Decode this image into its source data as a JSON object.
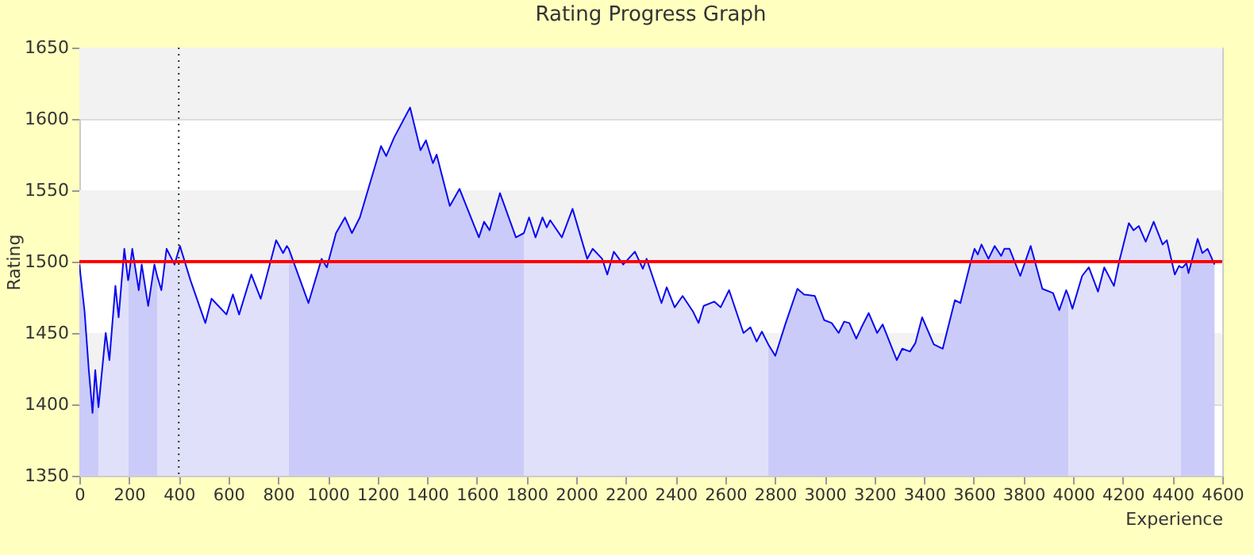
{
  "chart_data": {
    "type": "line",
    "title": "Rating Progress Graph",
    "xlabel": "Experience",
    "ylabel": "Rating",
    "xlim": [
      0,
      4600
    ],
    "xticks": [
      0,
      200,
      400,
      600,
      800,
      1000,
      1200,
      1400,
      1600,
      1800,
      2000,
      2200,
      2400,
      2600,
      2800,
      3000,
      3200,
      3400,
      3600,
      3800,
      4000,
      4200,
      4400,
      4600
    ],
    "ylim": [
      1350,
      1650
    ],
    "yticks": [
      1350,
      1400,
      1450,
      1500,
      1550,
      1600,
      1650
    ],
    "grid": "y",
    "ref_lines": [
      {
        "axis": "y",
        "value": 1500,
        "color": "#ff0000",
        "line_style": "solid"
      },
      {
        "axis": "x",
        "value": 400,
        "color": "#1a3a1a",
        "line_style": "dotted"
      }
    ],
    "series": [
      {
        "type": "area",
        "color": "#cbcbf9",
        "x": [
          0,
          21,
          38,
          53,
          64,
          77
        ],
        "values": [
          1498,
          1465,
          1424,
          1394,
          1424,
          1398
        ]
      },
      {
        "type": "area",
        "color": "#e0e0fb",
        "x": [
          77,
          106,
          121,
          145,
          158,
          181,
          196,
          198
        ],
        "values": [
          1398,
          1450,
          1431,
          1483,
          1461,
          1509,
          1487,
          1488
        ]
      },
      {
        "type": "area",
        "color": "#cbcbf9",
        "x": [
          198,
          213,
          239,
          251,
          277,
          302,
          313
        ],
        "values": [
          1488,
          1509,
          1480,
          1498,
          1469,
          1498,
          1490
        ]
      },
      {
        "type": "area",
        "color": "#e0e0fb",
        "x": [
          313,
          330,
          351,
          383,
          405,
          447,
          507,
          532,
          554,
          592,
          618,
          643,
          692,
          730,
          792,
          820,
          835,
          843
        ],
        "values": [
          1490,
          1480,
          1509,
          1498,
          1511,
          1487,
          1457,
          1474,
          1470,
          1463,
          1477,
          1463,
          1491,
          1474,
          1515,
          1506,
          1511,
          1509
        ]
      },
      {
        "type": "area",
        "color": "#cbcbf9",
        "x": [
          843,
          922,
          975,
          996,
          1033,
          1069,
          1097,
          1129,
          1214,
          1235,
          1267,
          1331,
          1373,
          1395,
          1423,
          1438,
          1491,
          1530,
          1608,
          1629,
          1651,
          1693,
          1757,
          1789
        ],
        "values": [
          1509,
          1471,
          1502,
          1496,
          1520,
          1531,
          1520,
          1531,
          1581,
          1574,
          1587,
          1608,
          1578,
          1585,
          1569,
          1575,
          1539,
          1551,
          1517,
          1528,
          1522,
          1548,
          1517,
          1520
        ]
      },
      {
        "type": "area",
        "color": "#e0e0fb",
        "x": [
          1789,
          1810,
          1836,
          1864,
          1881,
          1895,
          1942,
          1985,
          2044,
          2066,
          2104,
          2125,
          2151,
          2189,
          2236,
          2268,
          2283,
          2343,
          2364,
          2396,
          2428,
          2470,
          2492,
          2513,
          2556,
          2581,
          2615,
          2673,
          2701,
          2726,
          2747,
          2773
        ],
        "values": [
          1520,
          1531,
          1517,
          1531,
          1524,
          1529,
          1517,
          1537,
          1502,
          1509,
          1502,
          1491,
          1507,
          1498,
          1507,
          1495,
          1502,
          1471,
          1482,
          1468,
          1476,
          1465,
          1457,
          1469,
          1472,
          1468,
          1480,
          1450,
          1454,
          1444,
          1451,
          1442
        ]
      },
      {
        "type": "area",
        "color": "#cbcbf9",
        "x": [
          2773,
          2801,
          2843,
          2890,
          2917,
          2960,
          2998,
          3028,
          3056,
          3078,
          3099,
          3127,
          3148,
          3177,
          3211,
          3233,
          3290,
          3312,
          3343,
          3365,
          3392,
          3439,
          3475,
          3524,
          3546,
          3588,
          3603,
          3616,
          3631,
          3659,
          3684,
          3710,
          3723,
          3744,
          3787,
          3829,
          3876,
          3919,
          3944,
          3972,
          3981
        ],
        "values": [
          1442,
          1434,
          1457,
          1481,
          1477,
          1476,
          1459,
          1457,
          1450,
          1458,
          1457,
          1446,
          1454,
          1464,
          1450,
          1456,
          1431,
          1439,
          1437,
          1443,
          1461,
          1442,
          1439,
          1473,
          1471,
          1500,
          1509,
          1505,
          1512,
          1502,
          1511,
          1504,
          1509,
          1509,
          1490,
          1511,
          1481,
          1478,
          1466,
          1480,
          1476
        ]
      },
      {
        "type": "area",
        "color": "#e0e0fb",
        "x": [
          3981,
          3997,
          4036,
          4063,
          4100,
          4125,
          4164,
          4185,
          4224,
          4243,
          4264,
          4292,
          4324,
          4360,
          4377,
          4409,
          4426,
          4434
        ],
        "values": [
          1476,
          1467,
          1490,
          1496,
          1479,
          1496,
          1483,
          1500,
          1527,
          1522,
          1525,
          1514,
          1528,
          1512,
          1515,
          1491,
          1497,
          1496
        ]
      },
      {
        "type": "area",
        "color": "#cbcbf9",
        "x": [
          4434,
          4441,
          4456,
          4464,
          4501,
          4520,
          4541,
          4569
        ],
        "values": [
          1496,
          1496,
          1499,
          1492,
          1516,
          1506,
          1509,
          1498
        ]
      },
      {
        "type": "line",
        "color": "#0a0af0",
        "x": [
          0,
          21,
          38,
          53,
          64,
          77,
          106,
          121,
          145,
          158,
          181,
          196,
          198,
          213,
          239,
          251,
          277,
          302,
          313,
          330,
          351,
          383,
          405,
          447,
          507,
          532,
          554,
          592,
          618,
          643,
          692,
          730,
          792,
          820,
          835,
          843,
          922,
          975,
          996,
          1033,
          1069,
          1097,
          1129,
          1214,
          1235,
          1267,
          1331,
          1373,
          1395,
          1423,
          1438,
          1491,
          1530,
          1608,
          1629,
          1651,
          1693,
          1757,
          1789,
          1810,
          1836,
          1864,
          1881,
          1895,
          1942,
          1985,
          2044,
          2066,
          2104,
          2125,
          2151,
          2189,
          2236,
          2268,
          2283,
          2343,
          2364,
          2396,
          2428,
          2470,
          2492,
          2513,
          2556,
          2581,
          2615,
          2673,
          2701,
          2726,
          2747,
          2773,
          2801,
          2843,
          2890,
          2917,
          2960,
          2998,
          3028,
          3056,
          3078,
          3099,
          3127,
          3148,
          3177,
          3211,
          3233,
          3290,
          3312,
          3343,
          3365,
          3392,
          3439,
          3475,
          3524,
          3546,
          3588,
          3603,
          3616,
          3631,
          3659,
          3684,
          3710,
          3723,
          3744,
          3787,
          3829,
          3876,
          3919,
          3944,
          3972,
          3981,
          3997,
          4036,
          4063,
          4100,
          4125,
          4164,
          4185,
          4224,
          4243,
          4264,
          4292,
          4324,
          4360,
          4377,
          4409,
          4426,
          4434,
          4441,
          4456,
          4464,
          4501,
          4520,
          4541,
          4569
        ],
        "values": [
          1498,
          1465,
          1424,
          1394,
          1424,
          1398,
          1450,
          1431,
          1483,
          1461,
          1509,
          1487,
          1488,
          1509,
          1480,
          1498,
          1469,
          1498,
          1490,
          1480,
          1509,
          1498,
          1511,
          1487,
          1457,
          1474,
          1470,
          1463,
          1477,
          1463,
          1491,
          1474,
          1515,
          1506,
          1511,
          1509,
          1471,
          1502,
          1496,
          1520,
          1531,
          1520,
          1531,
          1581,
          1574,
          1587,
          1608,
          1578,
          1585,
          1569,
          1575,
          1539,
          1551,
          1517,
          1528,
          1522,
          1548,
          1517,
          1520,
          1531,
          1517,
          1531,
          1524,
          1529,
          1517,
          1537,
          1502,
          1509,
          1502,
          1491,
          1507,
          1498,
          1507,
          1495,
          1502,
          1471,
          1482,
          1468,
          1476,
          1465,
          1457,
          1469,
          1472,
          1468,
          1480,
          1450,
          1454,
          1444,
          1451,
          1442,
          1434,
          1457,
          1481,
          1477,
          1476,
          1459,
          1457,
          1450,
          1458,
          1457,
          1446,
          1454,
          1464,
          1450,
          1456,
          1431,
          1439,
          1437,
          1443,
          1461,
          1442,
          1439,
          1473,
          1471,
          1500,
          1509,
          1505,
          1512,
          1502,
          1511,
          1504,
          1509,
          1509,
          1490,
          1511,
          1481,
          1478,
          1466,
          1480,
          1476,
          1467,
          1490,
          1496,
          1479,
          1496,
          1483,
          1500,
          1527,
          1522,
          1525,
          1514,
          1528,
          1512,
          1515,
          1491,
          1497,
          1496,
          1496,
          1499,
          1492,
          1516,
          1506,
          1509,
          1498
        ]
      }
    ]
  }
}
